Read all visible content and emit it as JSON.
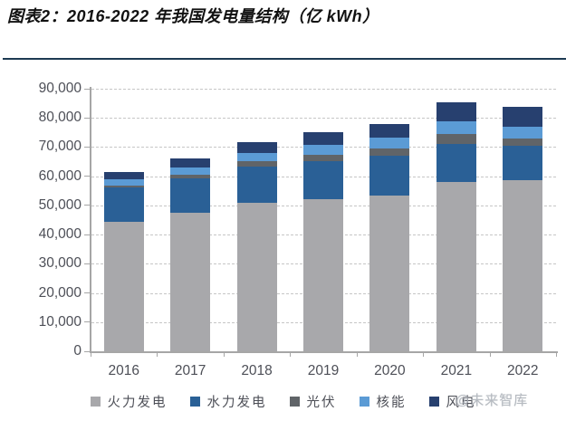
{
  "title": "图表2：2016-2022 年我国发电量结构（亿 kWh）",
  "watermark": "@未来智库",
  "styles": {
    "divider_color": "#1d3a52",
    "axis_color": "#a6a6a6",
    "grid_color": "#c6c6c6",
    "label_color": "#4d4f57",
    "watermark_color": "#aeb3ba"
  },
  "chart_data": {
    "type": "bar",
    "stacked": true,
    "title": "2016-2022 年我国发电量结构",
    "unit": "亿 kWh",
    "xlabel": "",
    "ylabel": "",
    "ylim": [
      0,
      90000
    ],
    "ytick_step": 10000,
    "grid": "horizontal dashed",
    "legend_position": "bottom",
    "categories": [
      "2016",
      "2017",
      "2018",
      "2019",
      "2020",
      "2021",
      "2022"
    ],
    "series": [
      {
        "name": "火力发电",
        "color": "#a8a8ab",
        "values": [
          44400,
          47500,
          51000,
          52200,
          53300,
          58100,
          58500
        ]
      },
      {
        "name": "水力发电",
        "color": "#2a6096",
        "values": [
          11800,
          11900,
          12300,
          13000,
          13600,
          13000,
          12000
        ]
      },
      {
        "name": "光伏",
        "color": "#606468",
        "values": [
          700,
          1200,
          1800,
          2200,
          2600,
          3400,
          2300
        ]
      },
      {
        "name": "核能",
        "color": "#5b9bd5",
        "values": [
          2100,
          2500,
          2900,
          3500,
          3700,
          4300,
          4200
        ]
      },
      {
        "name": "风电",
        "color": "#27406f",
        "values": [
          2400,
          3100,
          3700,
          4100,
          4700,
          6600,
          6900
        ]
      }
    ],
    "totals": [
      61400,
      66200,
      71700,
      75000,
      77900,
      85400,
      83900
    ]
  }
}
